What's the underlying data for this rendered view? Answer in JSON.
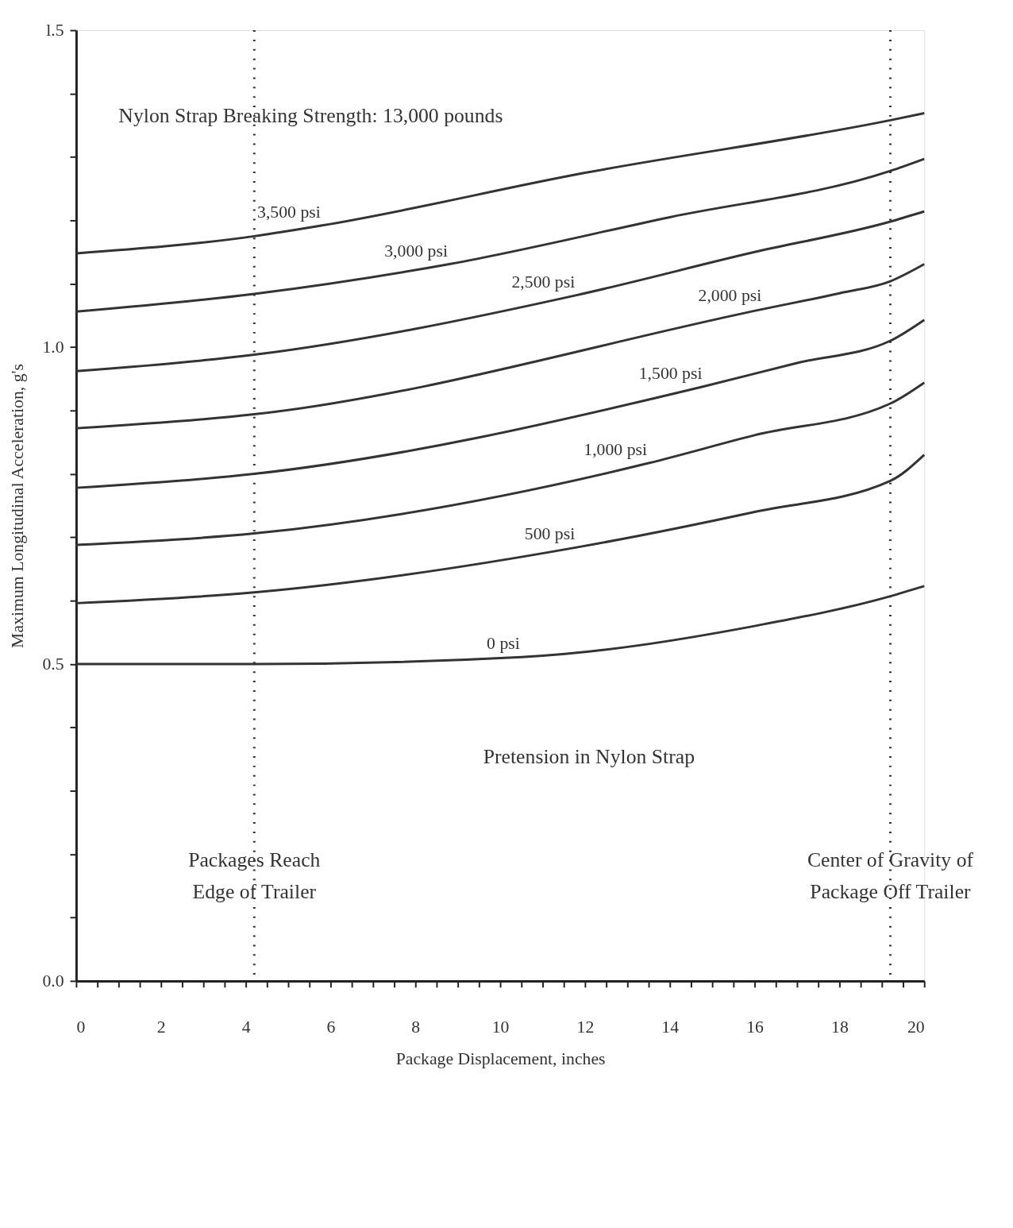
{
  "chart_data": {
    "type": "line",
    "xlabel": "Package Displacement, inches",
    "ylabel": "Maximum Longitudinal Acceleration, g's",
    "xlim": [
      0,
      20
    ],
    "ylim": [
      0,
      1.5
    ],
    "xticks": [
      0,
      {
        "value": 0.5,
        "label": null
      },
      {
        "value": 1,
        "label": null
      },
      {
        "value": 1.5,
        "label": null
      },
      2,
      {
        "value": 2.5,
        "label": null
      },
      {
        "value": 3,
        "label": null
      },
      {
        "value": 3.5,
        "label": null
      },
      4,
      {
        "value": 4.5,
        "label": null
      },
      {
        "value": 5,
        "label": null
      },
      {
        "value": 5.5,
        "label": null
      },
      6,
      {
        "value": 6.5,
        "label": null
      },
      {
        "value": 7,
        "label": null
      },
      {
        "value": 7.5,
        "label": null
      },
      8,
      {
        "value": 8.5,
        "label": null
      },
      {
        "value": 9,
        "label": null
      },
      {
        "value": 9.5,
        "label": null
      },
      10,
      {
        "value": 10.5,
        "label": null
      },
      {
        "value": 11,
        "label": null
      },
      {
        "value": 11.5,
        "label": null
      },
      12,
      {
        "value": 12.5,
        "label": null
      },
      {
        "value": 13,
        "label": null
      },
      {
        "value": 13.5,
        "label": null
      },
      14,
      {
        "value": 14.5,
        "label": null
      },
      {
        "value": 15,
        "label": null
      },
      {
        "value": 15.5,
        "label": null
      },
      16,
      {
        "value": 16.5,
        "label": null
      },
      {
        "value": 17,
        "label": null
      },
      {
        "value": 17.5,
        "label": null
      },
      18,
      {
        "value": 18.5,
        "label": null
      },
      {
        "value": 19,
        "label": null
      },
      {
        "value": 19.5,
        "label": null
      },
      20
    ],
    "yticks": [
      {
        "value": 0,
        "label": "0.0"
      },
      {
        "value": 0.1,
        "label": null
      },
      {
        "value": 0.2,
        "label": null
      },
      {
        "value": 0.3,
        "label": null
      },
      {
        "value": 0.4,
        "label": null
      },
      0.5,
      {
        "value": 0.6,
        "label": null
      },
      {
        "value": 0.7,
        "label": null
      },
      {
        "value": 0.8,
        "label": null
      },
      {
        "value": 0.9,
        "label": null
      },
      {
        "value": 1,
        "label": "1.0"
      },
      {
        "value": 1.1,
        "label": null
      },
      {
        "value": 1.2,
        "label": null
      },
      {
        "value": 1.3,
        "label": null
      },
      {
        "value": 1.4,
        "label": null
      },
      {
        "value": 1.5,
        "label": "l.5"
      }
    ],
    "grid": false,
    "marker": "none",
    "line_style": "solid",
    "series": [
      {
        "name": "0 psi",
        "color": "#333333",
        "x": [
          0,
          4.2,
          10.5,
          16,
          19.2,
          20
        ],
        "values": [
          0.5,
          0.5,
          0.511,
          0.56,
          0.607,
          0.623
        ]
      },
      {
        "name": "500 psi",
        "color": "#333333",
        "x": [
          0,
          4.2,
          11.8,
          16,
          19.2,
          20
        ],
        "values": [
          0.596,
          0.613,
          0.684,
          0.74,
          0.789,
          0.83
        ]
      },
      {
        "name": "1,000 psi",
        "color": "#333333",
        "x": [
          0,
          4.2,
          13.5,
          16,
          19.2,
          20
        ],
        "values": [
          0.688,
          0.706,
          0.817,
          0.861,
          0.911,
          0.944
        ]
      },
      {
        "name": "1,500 psi",
        "color": "#333333",
        "x": [
          0,
          4.2,
          14.8,
          17,
          19.2,
          20
        ],
        "values": [
          0.778,
          0.8,
          0.938,
          0.975,
          1.01,
          1.043
        ]
      },
      {
        "name": "2,000 psi",
        "color": "#333333",
        "x": [
          0,
          4.2,
          16.2,
          18,
          19.2,
          20
        ],
        "values": [
          0.872,
          0.894,
          1.06,
          1.085,
          1.104,
          1.131
        ]
      },
      {
        "name": "2,500 psi",
        "color": "#333333",
        "x": [
          0,
          4.2,
          11.8,
          16,
          19.2,
          20
        ],
        "values": [
          0.962,
          0.988,
          1.082,
          1.15,
          1.198,
          1.214
        ]
      },
      {
        "name": "3,000 psi",
        "color": "#333333",
        "x": [
          0,
          4.2,
          8.8,
          14,
          19.2,
          20
        ],
        "values": [
          1.056,
          1.084,
          1.131,
          1.205,
          1.278,
          1.297
        ]
      },
      {
        "name": "3,500 psi",
        "color": "#333333",
        "x": [
          0,
          4.2,
          5.8,
          12,
          19.2,
          20
        ],
        "values": [
          1.148,
          1.175,
          1.192,
          1.275,
          1.358,
          1.369
        ]
      }
    ],
    "ref_lines": [
      {
        "axis": "x",
        "value": 4.2,
        "label": "Packages Reach\nEdge of Trailer",
        "line_style": "dotted",
        "color": "#333333"
      },
      {
        "axis": "x",
        "value": 19.2,
        "label": "Center of Gravity of\nPackage Off Trailer",
        "line_style": "dotted",
        "color": "#333333"
      }
    ],
    "annotations": [
      "Nylon Strap Breaking Strength: 13,000 pounds",
      "Pretension in Nylon Strap"
    ]
  }
}
